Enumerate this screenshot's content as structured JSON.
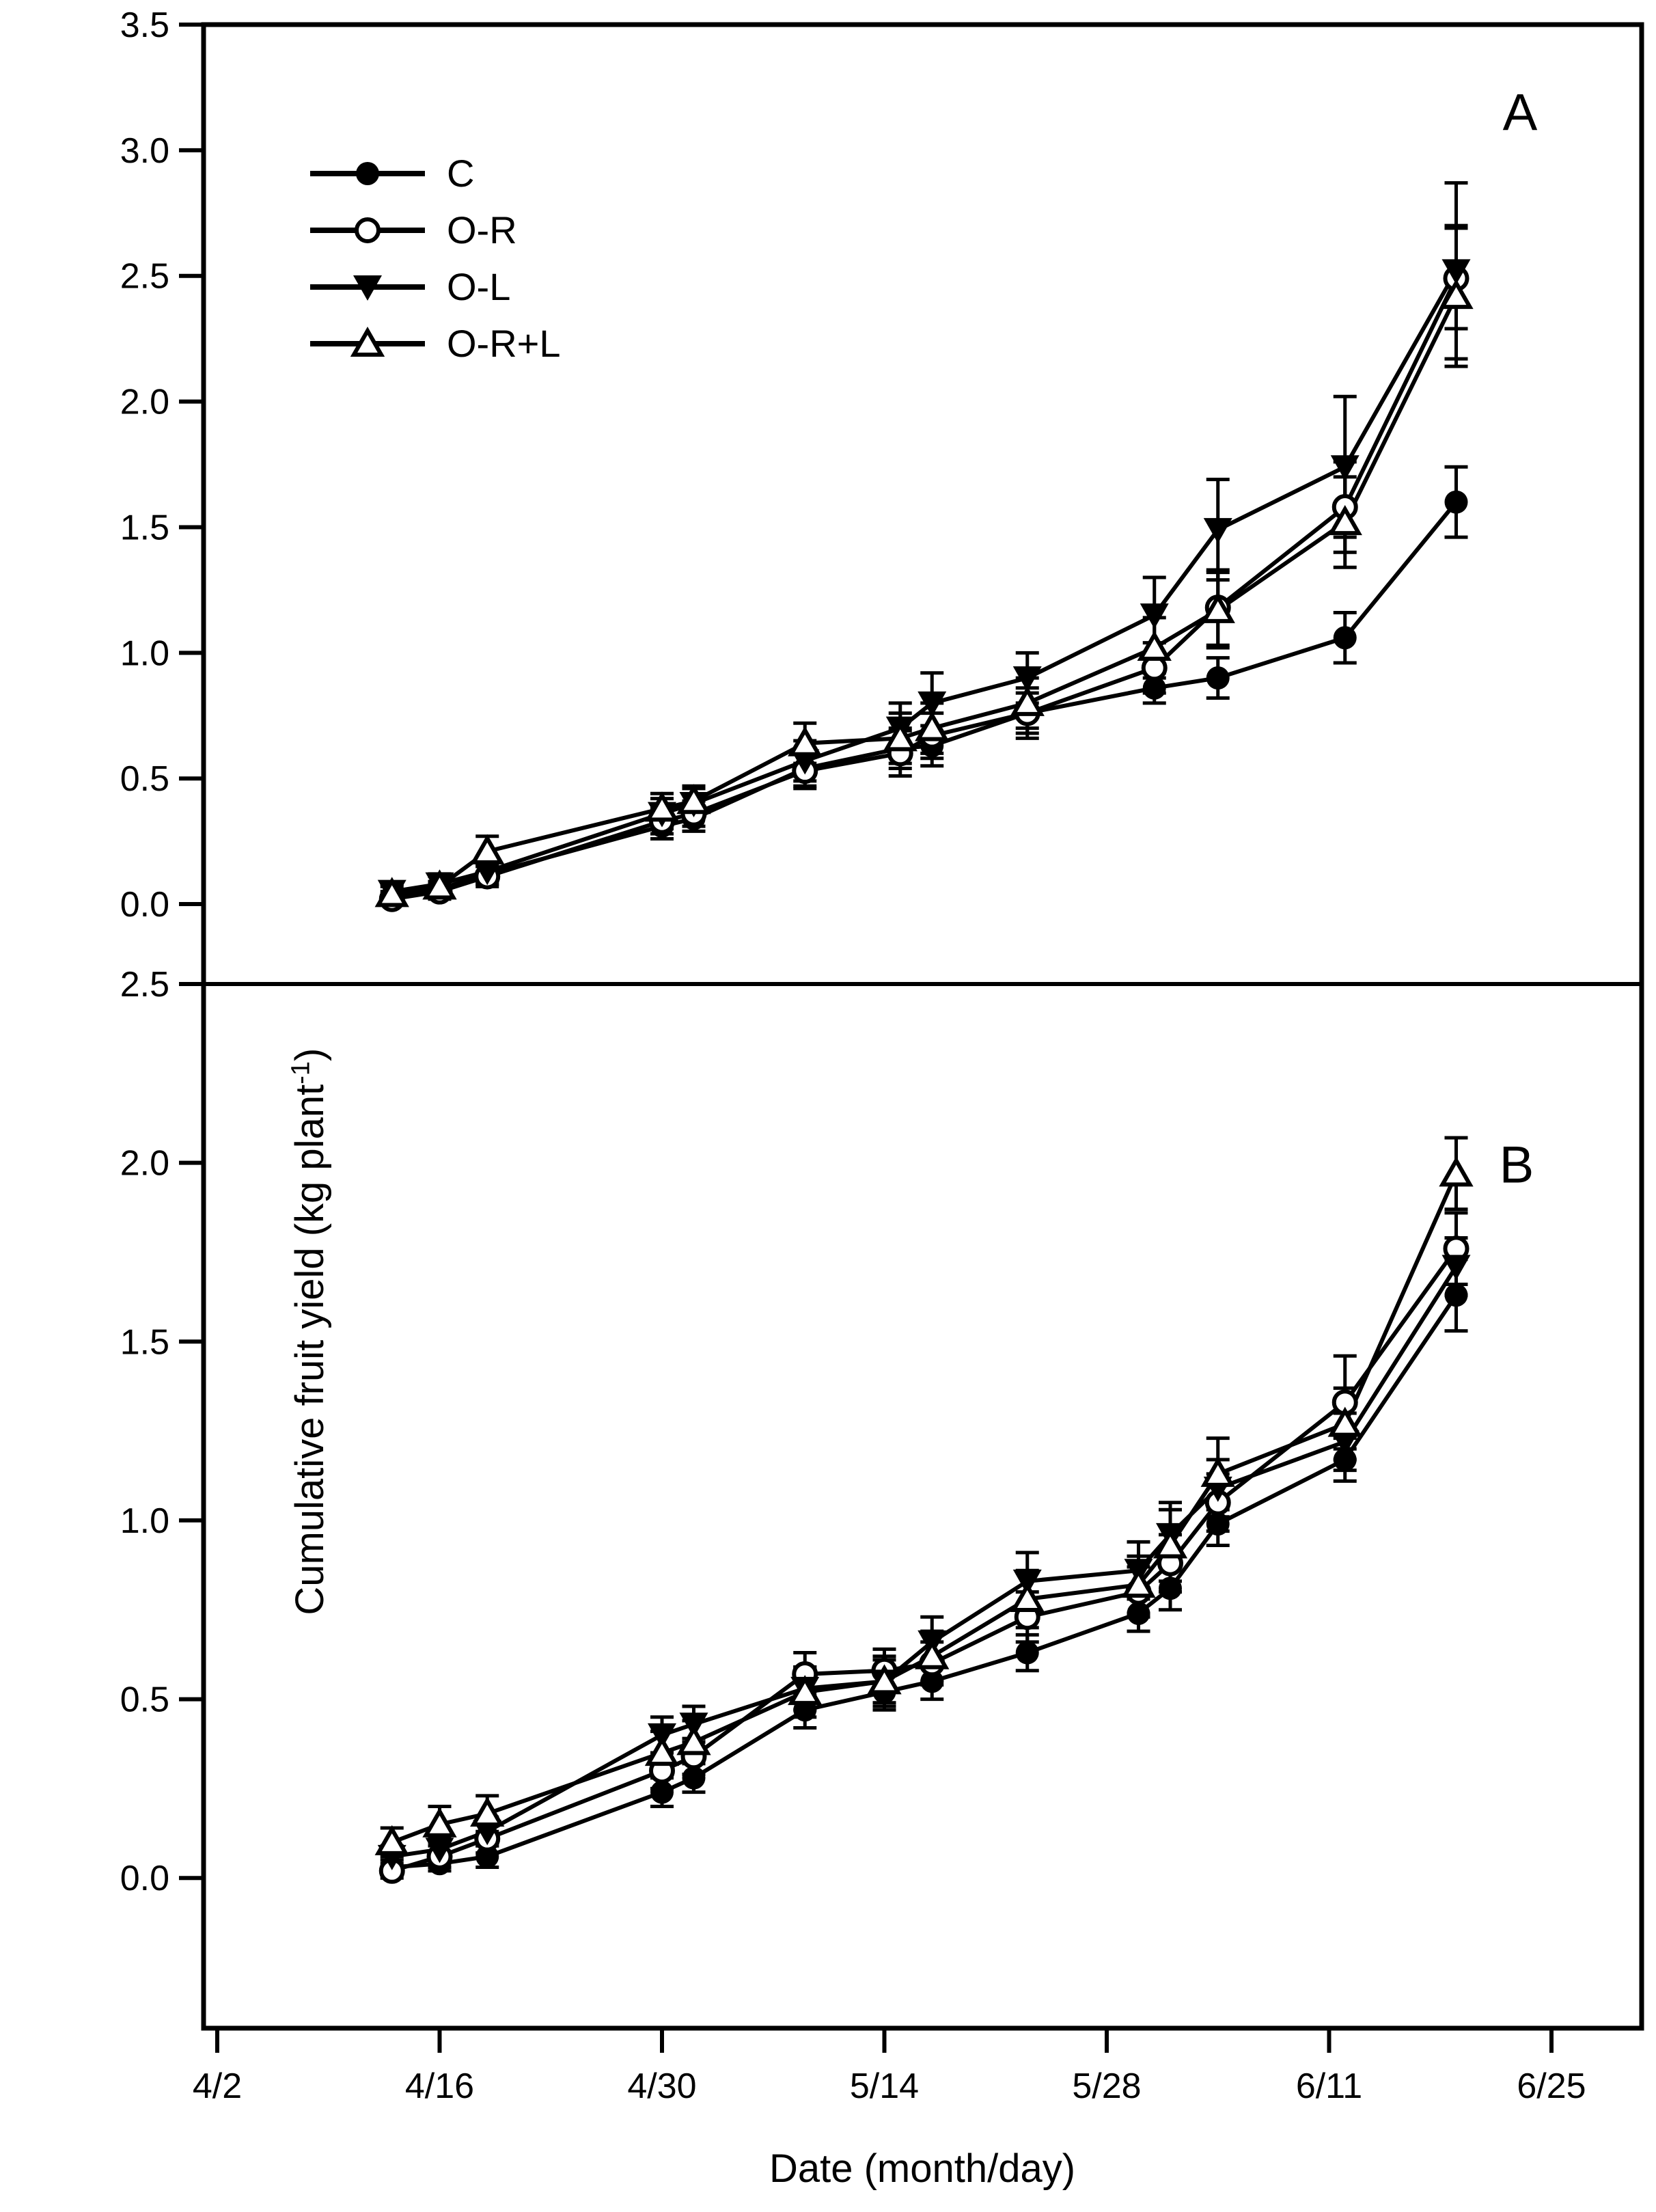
{
  "figure": {
    "y_axis_label_prefix": "Cumulative fruit yield (kg plant",
    "y_axis_label_sup": "-1",
    "y_axis_label_suffix": ")",
    "x_axis_label": "Date (month/day)",
    "panel_letter_a": "A",
    "panel_letter_b": "B",
    "colors": {
      "foreground": "#000000",
      "background": "#ffffff"
    }
  },
  "legend": {
    "items": [
      {
        "label": "C",
        "marker": "filled-circle"
      },
      {
        "label": "O-R",
        "marker": "open-circle"
      },
      {
        "label": "O-L",
        "marker": "filled-triangle-down"
      },
      {
        "label": "O-R+L",
        "marker": "open-triangle-up"
      }
    ]
  },
  "chart_data": [
    {
      "type": "line",
      "panel_label": "A",
      "ylim": [
        -0.318,
        3.5
      ],
      "y_ticks": [
        0.0,
        0.5,
        1.0,
        1.5,
        2.0,
        2.5,
        3.0,
        3.5
      ],
      "x_tick_days": [
        0,
        14,
        28,
        42,
        56,
        70,
        84
      ],
      "x_tick_labels": [
        "4/2",
        "4/16",
        "4/30",
        "5/14",
        "5/28",
        "6/11",
        "6/25"
      ],
      "show_x_tick_labels": false,
      "xlabel": "Date (month/day)",
      "ylabel": "Cumulative fruit yield (kg plant-1)",
      "x_days": [
        11,
        14,
        17,
        28,
        30,
        37,
        43,
        45,
        51,
        59,
        63,
        71,
        78
      ],
      "x_date_labels": [
        "4/13",
        "4/16",
        "4/19",
        "4/30",
        "5/2",
        "5/9",
        "5/15",
        "5/17",
        "5/23",
        "5/31",
        "6/4",
        "6/12",
        "6/19"
      ],
      "series": [
        {
          "name": "C",
          "marker": "filled-circle",
          "values": [
            0.03,
            0.06,
            0.12,
            0.31,
            0.34,
            0.54,
            0.62,
            0.63,
            0.76,
            0.86,
            0.9,
            1.06,
            1.6
          ],
          "errors": [
            0.02,
            0.03,
            0.04,
            0.05,
            0.05,
            0.07,
            0.08,
            0.08,
            0.08,
            0.06,
            0.08,
            0.1,
            0.14
          ]
        },
        {
          "name": "O-R",
          "marker": "open-circle",
          "values": [
            0.02,
            0.05,
            0.11,
            0.33,
            0.36,
            0.53,
            0.6,
            0.67,
            0.76,
            0.94,
            1.18,
            1.58,
            2.49
          ],
          "errors": [
            0.02,
            0.03,
            0.04,
            0.05,
            0.05,
            0.07,
            0.09,
            0.09,
            0.1,
            0.1,
            0.15,
            0.18,
            0.2
          ]
        },
        {
          "name": "O-L",
          "marker": "filled-triangle-down",
          "values": [
            0.05,
            0.08,
            0.13,
            0.36,
            0.4,
            0.57,
            0.7,
            0.8,
            0.9,
            1.15,
            1.49,
            1.74,
            2.52
          ],
          "errors": [
            0.03,
            0.04,
            0.05,
            0.06,
            0.06,
            0.08,
            0.1,
            0.12,
            0.1,
            0.15,
            0.2,
            0.28,
            0.35
          ]
        },
        {
          "name": "O-R+L",
          "marker": "open-triangle-up",
          "values": [
            0.04,
            0.07,
            0.21,
            0.38,
            0.41,
            0.64,
            0.66,
            0.7,
            0.8,
            1.02,
            1.17,
            1.52,
            2.42
          ],
          "errors": [
            0.03,
            0.04,
            0.06,
            0.06,
            0.06,
            0.08,
            0.1,
            0.1,
            0.1,
            0.12,
            0.15,
            0.18,
            0.28
          ]
        }
      ]
    },
    {
      "type": "line",
      "panel_label": "B",
      "ylim": [
        -0.42,
        2.5
      ],
      "y_ticks": [
        0.0,
        0.5,
        1.0,
        1.5,
        2.0,
        2.5
      ],
      "x_tick_days": [
        0,
        14,
        28,
        42,
        56,
        70,
        84
      ],
      "x_tick_labels": [
        "4/2",
        "4/16",
        "4/30",
        "5/14",
        "5/28",
        "6/11",
        "6/25"
      ],
      "show_x_tick_labels": true,
      "xlabel": "Date (month/day)",
      "ylabel": "Cumulative fruit yield (kg plant-1)",
      "x_days": [
        11,
        14,
        17,
        28,
        30,
        37,
        42,
        45,
        51,
        58,
        60,
        63,
        71,
        78
      ],
      "x_date_labels": [
        "4/13",
        "4/16",
        "4/19",
        "4/30",
        "5/2",
        "5/9",
        "5/14",
        "5/17",
        "5/23",
        "5/30",
        "6/1",
        "6/4",
        "6/12",
        "6/19"
      ],
      "series": [
        {
          "name": "C",
          "marker": "filled-circle",
          "values": [
            0.03,
            0.04,
            0.06,
            0.24,
            0.28,
            0.47,
            0.52,
            0.55,
            0.63,
            0.74,
            0.81,
            0.99,
            1.17,
            1.63
          ],
          "errors": [
            0.02,
            0.02,
            0.03,
            0.04,
            0.04,
            0.05,
            0.05,
            0.05,
            0.05,
            0.05,
            0.06,
            0.06,
            0.06,
            0.1
          ]
        },
        {
          "name": "O-R",
          "marker": "open-circle",
          "values": [
            0.02,
            0.06,
            0.11,
            0.3,
            0.34,
            0.57,
            0.58,
            0.6,
            0.73,
            0.8,
            0.88,
            1.05,
            1.33,
            1.76
          ],
          "errors": [
            0.02,
            0.03,
            0.04,
            0.05,
            0.05,
            0.06,
            0.06,
            0.06,
            0.07,
            0.07,
            0.08,
            0.08,
            0.13,
            0.1
          ]
        },
        {
          "name": "O-L",
          "marker": "filled-triangle-down",
          "values": [
            0.06,
            0.08,
            0.13,
            0.4,
            0.43,
            0.53,
            0.55,
            0.66,
            0.83,
            0.86,
            0.96,
            1.09,
            1.22,
            1.71
          ],
          "errors": [
            0.03,
            0.03,
            0.04,
            0.05,
            0.05,
            0.06,
            0.06,
            0.07,
            0.08,
            0.08,
            0.09,
            0.08,
            0.08,
            0.08
          ]
        },
        {
          "name": "O-R+L",
          "marker": "open-triangle-up",
          "values": [
            0.1,
            0.15,
            0.18,
            0.35,
            0.38,
            0.52,
            0.55,
            0.62,
            0.78,
            0.82,
            0.93,
            1.13,
            1.27,
            1.97
          ],
          "errors": [
            0.04,
            0.05,
            0.05,
            0.06,
            0.06,
            0.07,
            0.07,
            0.07,
            0.08,
            0.08,
            0.1,
            0.1,
            0.1,
            0.1
          ]
        }
      ]
    }
  ]
}
